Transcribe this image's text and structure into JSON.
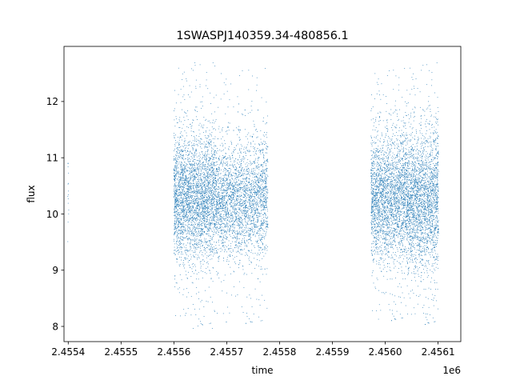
{
  "chart_data": {
    "type": "scatter",
    "title": "1SWASPJ140359.34-480856.1",
    "xlabel": "time",
    "ylabel": "flux",
    "x_offset_label": "1e6",
    "xlim": [
      2455392,
      2456143
    ],
    "ylim": [
      7.73,
      12.98
    ],
    "xticks": [
      {
        "value": 2455400,
        "label": "2.4554"
      },
      {
        "value": 2455500,
        "label": "2.4555"
      },
      {
        "value": 2455600,
        "label": "2.4556"
      },
      {
        "value": 2455700,
        "label": "2.4557"
      },
      {
        "value": 2455800,
        "label": "2.4558"
      },
      {
        "value": 2455900,
        "label": "2.4559"
      },
      {
        "value": 2456000,
        "label": "2.4560"
      },
      {
        "value": 2456100,
        "label": "2.4561"
      }
    ],
    "yticks": [
      {
        "value": 8,
        "label": "8"
      },
      {
        "value": 9,
        "label": "9"
      },
      {
        "value": 10,
        "label": "10"
      },
      {
        "value": 11,
        "label": "11"
      },
      {
        "value": 12,
        "label": "12"
      }
    ],
    "grid": false,
    "marker_color": "#1f77b4",
    "series": [
      {
        "name": "",
        "clusters": [
          {
            "x_range": [
              2455399,
              2455401
            ],
            "y_center": 10.2,
            "y_spread": 0.5,
            "y_min": 9.4,
            "y_max": 10.9,
            "count": 15
          },
          {
            "x_range": [
              2455600,
              2455678
            ],
            "y_center": 10.3,
            "y_spread": 0.55,
            "y_min": 7.95,
            "y_max": 12.7,
            "count": 3200
          },
          {
            "x_range": [
              2455678,
              2455778
            ],
            "y_center": 10.25,
            "y_spread": 0.5,
            "y_min": 8.0,
            "y_max": 12.6,
            "count": 3000
          },
          {
            "x_range": [
              2455973,
              2456040
            ],
            "y_center": 10.3,
            "y_spread": 0.55,
            "y_min": 8.05,
            "y_max": 12.6,
            "count": 2600
          },
          {
            "x_range": [
              2456040,
              2456101
            ],
            "y_center": 10.25,
            "y_spread": 0.6,
            "y_min": 7.98,
            "y_max": 12.7,
            "count": 2500
          }
        ]
      }
    ]
  }
}
